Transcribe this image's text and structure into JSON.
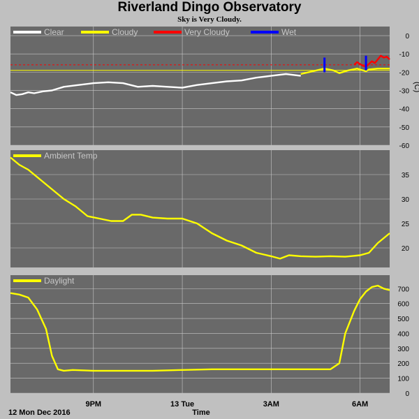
{
  "header": {
    "title": "Riverland Dingo Observatory",
    "subtitle": "Sky is Very Cloudy."
  },
  "colors": {
    "panel_bg": "#696969",
    "page_bg": "#c0c0c0",
    "grid": "#c8c8c8",
    "clear": "#ffffff",
    "cloudy": "#ffff00",
    "very_cloudy": "#ff0000",
    "wet": "#0000ff",
    "threshold": "#ff0000"
  },
  "footer": {
    "date_label": "12 Mon Dec 2016",
    "x_axis_label": "Time"
  },
  "chart_data": [
    {
      "type": "line",
      "id": "sky",
      "legend": [
        "Clear",
        "Cloudy",
        "Very Cloudy",
        "Wet"
      ],
      "unit_label": "(C)",
      "y_ticks": [
        0,
        -10,
        -20,
        -30,
        -40,
        -50,
        -60
      ],
      "ylim": [
        -60,
        5
      ],
      "x_ticks": [
        "9PM",
        "13 Tue",
        "3AM",
        "6AM"
      ],
      "x_tick_hours": [
        21,
        24,
        27,
        30
      ],
      "xlim_hours": [
        18.2,
        31.0
      ],
      "grid": true,
      "thresholds": [
        -16,
        -19
      ],
      "series": [
        {
          "name": "Clear",
          "color": "#ffffff",
          "x": [
            18.2,
            18.4,
            18.6,
            18.8,
            19.0,
            19.3,
            19.6,
            20.0,
            20.5,
            21.0,
            21.5,
            22.0,
            22.5,
            23.0,
            23.5,
            24.0,
            24.5,
            25.0,
            25.5,
            26.0,
            26.5,
            27.0,
            27.5,
            28.0
          ],
          "y": [
            -31,
            -32.5,
            -32,
            -31,
            -31.5,
            -30.5,
            -30,
            -28,
            -27,
            -26,
            -25.5,
            -26,
            -28,
            -27.5,
            -28,
            -28.5,
            -27,
            -26,
            -25,
            -24.5,
            -23,
            -22,
            -21,
            -22
          ]
        },
        {
          "name": "Cloudy",
          "color": "#ffff00",
          "x": [
            28.0,
            28.4,
            28.8,
            29.1,
            29.3,
            29.6,
            29.9,
            30.2,
            30.3,
            30.6,
            31.0
          ],
          "y": [
            -21,
            -19.5,
            -18,
            -19,
            -20.5,
            -19,
            -18,
            -19.5,
            -18.5,
            -18,
            -18
          ]
        },
        {
          "name": "Very Cloudy",
          "color": "#ff0000",
          "x": [
            29.8,
            29.9,
            30.0,
            30.1,
            30.2,
            30.4,
            30.5,
            30.6,
            30.7,
            30.8,
            30.9,
            31.0
          ],
          "y": [
            -16,
            -14.5,
            -15.5,
            -16.5,
            -17,
            -14,
            -15,
            -13,
            -11,
            -12,
            -11.5,
            -13
          ]
        },
        {
          "name": "Wet",
          "color": "#0000ff",
          "x": [
            28.8,
            28.8,
            30.2,
            30.2
          ],
          "y": [
            -12,
            -20,
            -11,
            -19
          ]
        }
      ]
    },
    {
      "type": "line",
      "id": "ambient",
      "legend": [
        "Ambient Temp"
      ],
      "y_ticks": [
        20,
        25,
        30,
        35
      ],
      "ylim": [
        16,
        40
      ],
      "x_tick_hours": [
        21,
        24,
        27,
        30
      ],
      "xlim_hours": [
        18.2,
        31.0
      ],
      "grid": true,
      "series": [
        {
          "name": "Ambient Temp",
          "color": "#ffff00",
          "x": [
            18.2,
            18.5,
            18.8,
            19.2,
            19.6,
            20.0,
            20.4,
            20.8,
            21.2,
            21.6,
            22.0,
            22.3,
            22.6,
            23.0,
            23.5,
            24.0,
            24.5,
            25.0,
            25.5,
            26.0,
            26.5,
            27.0,
            27.3,
            27.6,
            28.0,
            28.5,
            29.0,
            29.5,
            30.0,
            30.3,
            30.6,
            31.0
          ],
          "y": [
            38.5,
            37,
            36,
            34,
            32,
            30,
            28.5,
            26.5,
            26,
            25.5,
            25.5,
            26.8,
            26.8,
            26.2,
            26,
            26,
            25,
            23,
            21.5,
            20.5,
            19,
            18.3,
            17.8,
            18.5,
            18.3,
            18.2,
            18.3,
            18.2,
            18.5,
            19,
            21,
            23
          ]
        }
      ]
    },
    {
      "type": "line",
      "id": "daylight",
      "legend": [
        "Daylight"
      ],
      "y_ticks": [
        0,
        100,
        200,
        300,
        400,
        500,
        600,
        700
      ],
      "ylim": [
        0,
        790
      ],
      "x_tick_hours": [
        21,
        24,
        27,
        30
      ],
      "xlim_hours": [
        18.2,
        31.0
      ],
      "grid": true,
      "series": [
        {
          "name": "Daylight",
          "color": "#ffff00",
          "x": [
            18.2,
            18.5,
            18.8,
            19.1,
            19.4,
            19.6,
            19.8,
            20.0,
            20.3,
            21.0,
            22.0,
            23.0,
            24.0,
            25.0,
            26.0,
            27.0,
            28.0,
            28.5,
            29.0,
            29.3,
            29.5,
            29.8,
            30.0,
            30.2,
            30.4,
            30.6,
            30.8,
            31.0
          ],
          "y": [
            670,
            660,
            640,
            560,
            430,
            250,
            160,
            150,
            155,
            150,
            150,
            150,
            155,
            160,
            160,
            160,
            160,
            160,
            160,
            200,
            400,
            550,
            630,
            680,
            710,
            720,
            700,
            690
          ]
        }
      ]
    }
  ]
}
